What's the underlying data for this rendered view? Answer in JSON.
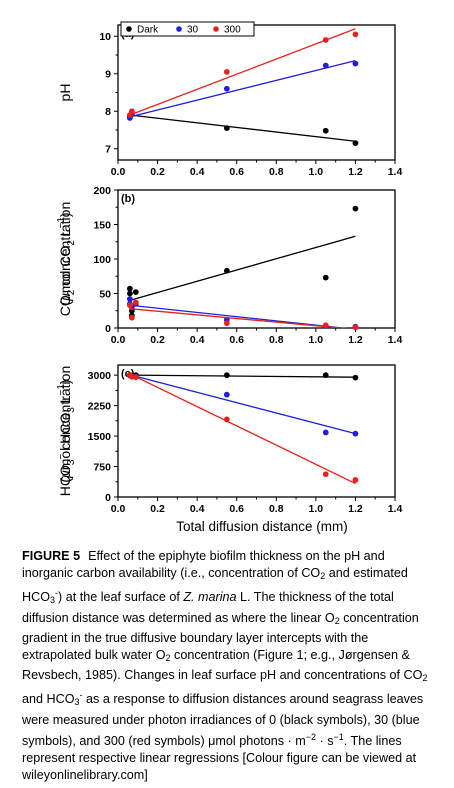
{
  "legend": {
    "entries": [
      {
        "label": "Dark",
        "color": "#000000"
      },
      {
        "label": "30",
        "color": "#1f1fdd"
      },
      {
        "label": "300",
        "color": "#e8211d"
      }
    ]
  },
  "shared_xlabel": "Total diffusion distance (mm)",
  "chart_data": [
    {
      "type": "scatter",
      "panel_label": "(a)",
      "ylabel": "pH",
      "xlim": [
        0.0,
        1.4
      ],
      "ylim": [
        6.7,
        10.3
      ],
      "x_ticks": [
        0.0,
        0.2,
        0.4,
        0.6,
        0.8,
        1.0,
        1.2,
        1.4
      ],
      "y_ticks": [
        7,
        8,
        9,
        10
      ],
      "series": [
        {
          "name": "Dark",
          "color": "#000000",
          "points": [
            [
              0.06,
              7.85
            ],
            [
              0.07,
              7.95
            ],
            [
              0.55,
              7.55
            ],
            [
              1.05,
              7.48
            ],
            [
              1.2,
              7.15
            ]
          ],
          "fit": [
            [
              0.06,
              7.9
            ],
            [
              1.2,
              7.2
            ]
          ]
        },
        {
          "name": "30",
          "color": "#1f1fdd",
          "points": [
            [
              0.06,
              7.82
            ],
            [
              0.07,
              7.92
            ],
            [
              0.55,
              8.6
            ],
            [
              1.05,
              9.22
            ],
            [
              1.2,
              9.27
            ]
          ],
          "fit": [
            [
              0.06,
              7.85
            ],
            [
              1.2,
              9.35
            ]
          ]
        },
        {
          "name": "300",
          "color": "#e8211d",
          "points": [
            [
              0.06,
              7.9
            ],
            [
              0.07,
              8.0
            ],
            [
              0.55,
              9.05
            ],
            [
              1.05,
              9.9
            ],
            [
              1.2,
              10.05
            ]
          ],
          "fit": [
            [
              0.06,
              7.9
            ],
            [
              1.2,
              10.2
            ]
          ]
        }
      ]
    },
    {
      "type": "scatter",
      "panel_label": "(b)",
      "ylabel": "CO2 concentration (μmol CO2 L-1)",
      "ylabel_parts": [
        "CO",
        "2",
        " concentration",
        "(",
        "μ",
        "mol CO",
        "2",
        " L",
        "−1",
        ")"
      ],
      "xlim": [
        0.0,
        1.4
      ],
      "ylim": [
        0,
        200
      ],
      "x_ticks": [
        0.0,
        0.2,
        0.4,
        0.6,
        0.8,
        1.0,
        1.2,
        1.4
      ],
      "y_ticks": [
        0,
        50,
        100,
        150,
        200
      ],
      "series": [
        {
          "name": "Dark",
          "color": "#000000",
          "points": [
            [
              0.06,
              57
            ],
            [
              0.06,
              50
            ],
            [
              0.07,
              25
            ],
            [
              0.07,
              18
            ],
            [
              0.09,
              52
            ],
            [
              0.55,
              83
            ],
            [
              1.05,
              73
            ],
            [
              1.2,
              173
            ]
          ],
          "fit": [
            [
              0.06,
              40
            ],
            [
              1.2,
              133
            ]
          ]
        },
        {
          "name": "30",
          "color": "#1f1fdd",
          "points": [
            [
              0.06,
              42
            ],
            [
              0.06,
              35
            ],
            [
              0.07,
              30
            ],
            [
              0.09,
              35
            ],
            [
              0.55,
              12
            ],
            [
              1.05,
              3
            ],
            [
              1.2,
              2
            ]
          ],
          "fit": [
            [
              0.06,
              33
            ],
            [
              1.2,
              -2
            ]
          ]
        },
        {
          "name": "300",
          "color": "#e8211d",
          "points": [
            [
              0.06,
              33
            ],
            [
              0.07,
              15
            ],
            [
              0.09,
              37
            ],
            [
              0.55,
              7
            ],
            [
              1.05,
              4
            ],
            [
              1.2,
              1
            ]
          ],
          "fit": [
            [
              0.06,
              28
            ],
            [
              1.2,
              -2
            ]
          ]
        }
      ]
    },
    {
      "type": "scatter",
      "panel_label": "(c)",
      "ylabel": "HCO3- concentration (μmol HCO3 L-1)",
      "ylabel_parts": [
        "HCO",
        "3",
        "−",
        " concentration",
        "(",
        "μ",
        "mol HCO",
        "3",
        " L",
        "−1",
        ")"
      ],
      "xlim": [
        0.0,
        1.4
      ],
      "ylim": [
        0,
        3250
      ],
      "x_ticks": [
        0.0,
        0.2,
        0.4,
        0.6,
        0.8,
        1.0,
        1.2,
        1.4
      ],
      "y_ticks": [
        0,
        750,
        1500,
        2250,
        3000
      ],
      "series": [
        {
          "name": "Dark",
          "color": "#000000",
          "points": [
            [
              0.06,
              3000
            ],
            [
              0.07,
              2990
            ],
            [
              0.09,
              3000
            ],
            [
              0.55,
              3000
            ],
            [
              1.05,
              3000
            ],
            [
              1.2,
              2940
            ]
          ],
          "fit": [
            [
              0.06,
              3000
            ],
            [
              1.2,
              2950
            ]
          ]
        },
        {
          "name": "30",
          "color": "#1f1fdd",
          "points": [
            [
              0.06,
              2990
            ],
            [
              0.07,
              2970
            ],
            [
              0.09,
              2960
            ],
            [
              0.55,
              2520
            ],
            [
              1.05,
              1590
            ],
            [
              1.2,
              1560
            ]
          ],
          "fit": [
            [
              0.06,
              3010
            ],
            [
              1.2,
              1560
            ]
          ]
        },
        {
          "name": "300",
          "color": "#e8211d",
          "points": [
            [
              0.06,
              3000
            ],
            [
              0.07,
              2960
            ],
            [
              0.09,
              2950
            ],
            [
              0.55,
              1910
            ],
            [
              1.05,
              560
            ],
            [
              1.2,
              420
            ]
          ],
          "fit": [
            [
              0.06,
              3030
            ],
            [
              1.2,
              330
            ]
          ]
        }
      ]
    }
  ],
  "caption": {
    "label": "FIGURE 5",
    "parts": [
      "Effect of the epiphyte biofilm thickness on the pH and inorganic carbon availability (i.e., concentration of CO",
      "2",
      " and estimated HCO",
      "3",
      "-",
      ") at the leaf surface of ",
      "Z. marina",
      " L. The thickness of the total diffusion distance was determined as where the linear O",
      "2",
      " concentration gradient in the true diffusive boundary layer intercepts with the extrapolated bulk water O",
      "2",
      " concentration (Figure 1; e.g., Jørgensen & Revsbech, 1985). Changes in leaf surface pH and concentrations of CO",
      "2",
      " and HCO",
      "3",
      "-",
      " as a response to diffusion distances around seagrass leaves were measured under photon irradiances of 0 (black symbols), 30 (blue symbols), and 300 (red symbols) μmol photons · m",
      "−2",
      " · s",
      "−1",
      ". The lines represent respective linear regressions [Colour figure can be viewed at wileyonlinelibrary.com]"
    ]
  }
}
